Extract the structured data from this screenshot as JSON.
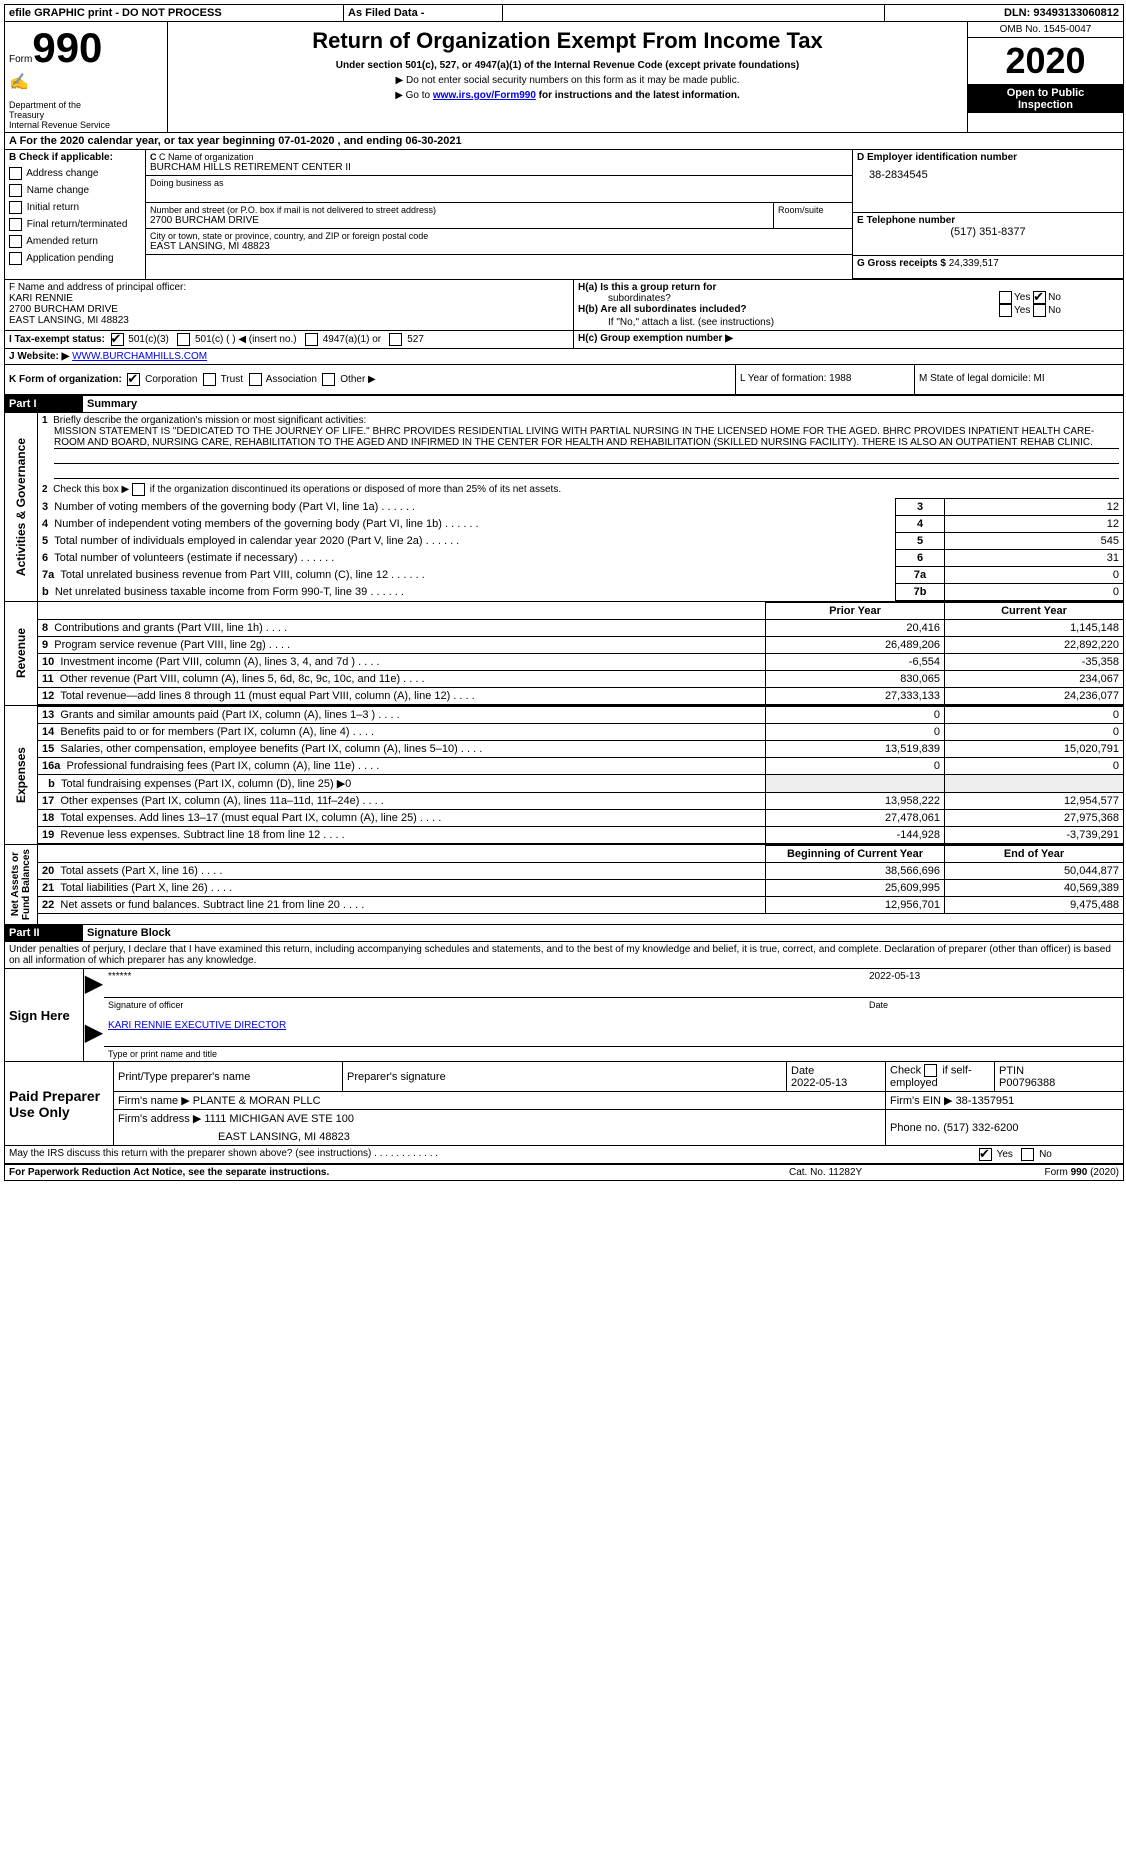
{
  "header_bar": {
    "efile": "efile GRAPHIC print - DO NOT PROCESS",
    "as_filed": "As Filed Data -",
    "dln_label": "DLN:",
    "dln": "93493133060812"
  },
  "form_box": {
    "form_label": "Form",
    "form_num": "990",
    "dept1": "Department of the",
    "dept2": "Treasury",
    "dept3": "Internal Revenue Service"
  },
  "title_block": {
    "title": "Return of Organization Exempt From Income Tax",
    "sub1": "Under section 501(c), 527, or 4947(a)(1) of the Internal Revenue Code (except private foundations)",
    "sub2": "▶ Do not enter social security numbers on this form as it may be made public.",
    "sub3_pre": "▶ Go to ",
    "sub3_link": "www.irs.gov/Form990",
    "sub3_post": " for instructions and the latest information."
  },
  "right_box": {
    "omb": "OMB No. 1545-0047",
    "year": "2020",
    "open1": "Open to Public",
    "open2": "Inspection"
  },
  "line_a": "A   For the 2020 calendar year, or tax year beginning 07-01-2020   , and ending 06-30-2021",
  "section_b": {
    "label": "B Check if applicable:",
    "items": [
      "Address change",
      "Name change",
      "Initial return",
      "Final return/terminated",
      "Amended return",
      "Application pending"
    ]
  },
  "section_c": {
    "name_label": "C Name of organization",
    "name": "BURCHAM HILLS RETIREMENT CENTER II",
    "dba": "Doing business as",
    "addr_label": "Number and street (or P.O. box if mail is not delivered to street address)",
    "room": "Room/suite",
    "addr": "2700 BURCHAM DRIVE",
    "city_label": "City or town, state or province, country, and ZIP or foreign postal code",
    "city": "EAST LANSING, MI  48823"
  },
  "section_d": {
    "label": "D Employer identification number",
    "value": "38-2834545"
  },
  "section_e": {
    "label": "E Telephone number",
    "value": "(517) 351-8377"
  },
  "section_g": {
    "label": "G Gross receipts $",
    "value": "24,339,517"
  },
  "section_f": {
    "label": "F  Name and address of principal officer:",
    "name": "KARI RENNIE",
    "addr": "2700 BURCHAM DRIVE",
    "city": "EAST LANSING, MI  48823"
  },
  "section_h": {
    "ha": "H(a)  Is this a group return for",
    "ha2": "subordinates?",
    "hb": "H(b)  Are all subordinates included?",
    "hb2": "If \"No,\" attach a list. (see instructions)",
    "hc": "H(c)  Group exemption number ▶",
    "yes": "Yes",
    "no": "No"
  },
  "section_i": {
    "label": "I   Tax-exempt status:",
    "o1": "501(c)(3)",
    "o2": "501(c) (   ) ◀ (insert no.)",
    "o3": "4947(a)(1) or",
    "o4": "527"
  },
  "section_j": {
    "label": "J   Website: ▶ ",
    "value": "WWW.BURCHAMHILLS.COM"
  },
  "section_k": {
    "label": "K Form of organization:",
    "o1": "Corporation",
    "o2": "Trust",
    "o3": "Association",
    "o4": "Other ▶"
  },
  "section_l": "L Year of formation: 1988",
  "section_m": "M State of legal domicile: MI",
  "part1": {
    "label": "Part I",
    "title": "Summary"
  },
  "line1": {
    "label": "1",
    "text": "Briefly describe the organization's mission or most significant activities:",
    "value": "MISSION STATEMENT IS \"DEDICATED TO THE JOURNEY OF LIFE.\" BHRC PROVIDES RESIDENTIAL LIVING WITH PARTIAL NURSING IN THE LICENSED HOME FOR THE AGED. BHRC PROVIDES INPATIENT HEALTH CARE-ROOM AND BOARD, NURSING CARE, REHABILITATION TO THE AGED AND INFIRMED IN THE CENTER FOR HEALTH AND REHABILITATION (SKILLED NURSING FACILITY). THERE IS ALSO AN OUTPATIENT REHAB CLINIC."
  },
  "line2": "Check this box ▶      if the organization discontinued its operations or disposed of more than 25% of its net assets.",
  "summary_rows": [
    {
      "n": "3",
      "text": "Number of voting members of the governing body (Part VI, line 1a)",
      "box": "3",
      "val": "12"
    },
    {
      "n": "4",
      "text": "Number of independent voting members of the governing body (Part VI, line 1b)",
      "box": "4",
      "val": "12"
    },
    {
      "n": "5",
      "text": "Total number of individuals employed in calendar year 2020 (Part V, line 2a)",
      "box": "5",
      "val": "545"
    },
    {
      "n": "6",
      "text": "Total number of volunteers (estimate if necessary)",
      "box": "6",
      "val": "31"
    },
    {
      "n": "7a",
      "text": "Total unrelated business revenue from Part VIII, column (C), line 12",
      "box": "7a",
      "val": "0"
    },
    {
      "n": "b",
      "text": "Net unrelated business taxable income from Form 990-T, line 39",
      "box": "7b",
      "val": "0"
    }
  ],
  "two_col_header": {
    "prior": "Prior Year",
    "current": "Current Year"
  },
  "revenue_rows": [
    {
      "n": "8",
      "text": "Contributions and grants (Part VIII, line 1h)",
      "p": "20,416",
      "c": "1,145,148"
    },
    {
      "n": "9",
      "text": "Program service revenue (Part VIII, line 2g)",
      "p": "26,489,206",
      "c": "22,892,220"
    },
    {
      "n": "10",
      "text": "Investment income (Part VIII, column (A), lines 3, 4, and 7d )",
      "p": "-6,554",
      "c": "-35,358"
    },
    {
      "n": "11",
      "text": "Other revenue (Part VIII, column (A), lines 5, 6d, 8c, 9c, 10c, and 11e)",
      "p": "830,065",
      "c": "234,067"
    },
    {
      "n": "12",
      "text": "Total revenue—add lines 8 through 11 (must equal Part VIII, column (A), line 12)",
      "p": "27,333,133",
      "c": "24,236,077"
    }
  ],
  "expense_rows": [
    {
      "n": "13",
      "text": "Grants and similar amounts paid (Part IX, column (A), lines 1–3 )",
      "p": "0",
      "c": "0"
    },
    {
      "n": "14",
      "text": "Benefits paid to or for members (Part IX, column (A), line 4)",
      "p": "0",
      "c": "0"
    },
    {
      "n": "15",
      "text": "Salaries, other compensation, employee benefits (Part IX, column (A), lines 5–10)",
      "p": "13,519,839",
      "c": "15,020,791"
    },
    {
      "n": "16a",
      "text": "Professional fundraising fees (Part IX, column (A), line 11e)",
      "p": "0",
      "c": "0"
    }
  ],
  "line16b": "Total fundraising expenses (Part IX, column (D), line 25) ▶0",
  "expense_rows2": [
    {
      "n": "17",
      "text": "Other expenses (Part IX, column (A), lines 11a–11d, 11f–24e)",
      "p": "13,958,222",
      "c": "12,954,577"
    },
    {
      "n": "18",
      "text": "Total expenses. Add lines 13–17 (must equal Part IX, column (A), line 25)",
      "p": "27,478,061",
      "c": "27,975,368"
    },
    {
      "n": "19",
      "text": "Revenue less expenses. Subtract line 18 from line 12",
      "p": "-144,928",
      "c": "-3,739,291"
    }
  ],
  "net_header": {
    "b": "Beginning of Current Year",
    "e": "End of Year"
  },
  "net_rows": [
    {
      "n": "20",
      "text": "Total assets (Part X, line 16)",
      "p": "38,566,696",
      "c": "50,044,877"
    },
    {
      "n": "21",
      "text": "Total liabilities (Part X, line 26)",
      "p": "25,609,995",
      "c": "40,569,389"
    },
    {
      "n": "22",
      "text": "Net assets or fund balances. Subtract line 21 from line 20",
      "p": "12,956,701",
      "c": "9,475,488"
    }
  ],
  "side_labels": {
    "ag": "Activities & Governance",
    "rev": "Revenue",
    "exp": "Expenses",
    "net": "Net Assets or\nFund Balances"
  },
  "part2": {
    "label": "Part II",
    "title": "Signature Block"
  },
  "perjury": "Under penalties of perjury, I declare that I have examined this return, including accompanying schedules and statements, and to the best of my knowledge and belief, it is true, correct, and complete. Declaration of preparer (other than officer) is based on all information of which preparer has any knowledge.",
  "sign": {
    "label": "Sign Here",
    "stars": "******",
    "sig_officer": "Signature of officer",
    "date": "2022-05-13",
    "date_label": "Date",
    "name": "KARI RENNIE EXECUTIVE DIRECTOR",
    "name_label": "Type or print name and title"
  },
  "preparer": {
    "label": "Paid Preparer Use Only",
    "h1": "Print/Type preparer's name",
    "h2": "Preparer's signature",
    "h3": "Date",
    "date": "2022-05-13",
    "h4_pre": "Check",
    "h4_post": "if self-employed",
    "h5": "PTIN",
    "ptin": "P00796388",
    "firm_name_label": "Firm's name     ▶",
    "firm_name": "PLANTE & MORAN PLLC",
    "firm_ein_label": "Firm's EIN ▶",
    "firm_ein": "38-1357951",
    "firm_addr_label": "Firm's address ▶",
    "firm_addr1": "1111 MICHIGAN AVE STE 100",
    "firm_addr2": "EAST LANSING, MI  48823",
    "phone_label": "Phone no.",
    "phone": "(517) 332-6200"
  },
  "footer": {
    "discuss": "May the IRS discuss this return with the preparer shown above? (see instructions)",
    "yes": "Yes",
    "no": "No",
    "paperwork": "For Paperwork Reduction Act Notice, see the separate instructions.",
    "cat": "Cat. No. 11282Y",
    "form": "Form 990 (2020)"
  }
}
